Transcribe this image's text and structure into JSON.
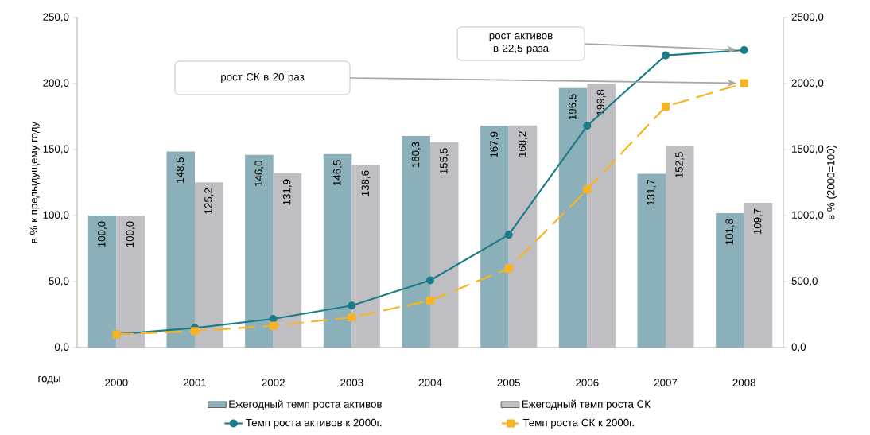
{
  "chart_data": {
    "type": "bar",
    "xlabel": "годы",
    "ylabel": "в % к предыдущему году",
    "y2label": "в % (2000=100)",
    "categories": [
      "2000",
      "2001",
      "2002",
      "2003",
      "2004",
      "2005",
      "2006",
      "2007",
      "2008"
    ],
    "ylim": [
      0,
      250
    ],
    "yticks": [
      {
        "value": 0,
        "label": "0,0"
      },
      {
        "value": 50,
        "label": "50,0"
      },
      {
        "value": 100,
        "label": "100,0"
      },
      {
        "value": 150,
        "label": "150,0"
      },
      {
        "value": 200,
        "label": "200,0"
      },
      {
        "value": 250,
        "label": "250,0"
      }
    ],
    "y2lim": [
      0,
      2500
    ],
    "y2ticks": [
      {
        "value": 0,
        "label": "0,0"
      },
      {
        "value": 500,
        "label": "500,0"
      },
      {
        "value": 1000,
        "label": "1000,0"
      },
      {
        "value": 1500,
        "label": "1500,0"
      },
      {
        "value": 2000,
        "label": "2000,0"
      },
      {
        "value": 2500,
        "label": "2500,0"
      }
    ],
    "series": [
      {
        "name": "Ежегодный темп роста активов",
        "color": "#8cb0b9",
        "values": [
          100.0,
          148.5,
          146.0,
          146.5,
          160.3,
          167.9,
          196.5,
          131.7,
          101.8
        ],
        "value_labels": [
          "100,0",
          "148,5",
          "146,0",
          "146,5",
          "160,3",
          "167,9",
          "196,5",
          "131,7",
          "101,8"
        ]
      },
      {
        "name": "Ежегодный темп роста СК",
        "color": "#bfbfc3",
        "values": [
          100.0,
          125.2,
          131.9,
          138.6,
          155.5,
          168.2,
          199.8,
          152.5,
          109.7
        ],
        "value_labels": [
          "100,0",
          "125,2",
          "131,9",
          "138,6",
          "155,5",
          "168,2",
          "199,8",
          "152,5",
          "109,7"
        ]
      },
      {
        "name": "Темп роста активов к 2000г.",
        "type": "line",
        "axis": "y2",
        "color": "#1b7b87",
        "marker": "circle",
        "line_style": "solid",
        "values": [
          100,
          148,
          217,
          318,
          509,
          855,
          1680,
          2213,
          2253
        ]
      },
      {
        "name": "Темп роста СК к 2000г.",
        "type": "line",
        "axis": "y2",
        "color": "#f8b323",
        "marker": "square",
        "line_style": "dashed",
        "values": [
          100,
          125,
          165,
          229,
          356,
          599,
          1197,
          1825,
          2002
        ]
      }
    ],
    "annotations": [
      "рост активов в 22,5 раза",
      "рост СК в 20 раз"
    ],
    "legend": "bottom",
    "grid": false
  }
}
